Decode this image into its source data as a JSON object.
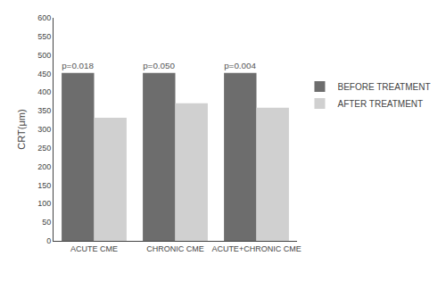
{
  "chart_data": {
    "type": "bar",
    "categories": [
      "ACUTE CME",
      "CHRONIC CME",
      "ACUTE+CHRONIC CME"
    ],
    "series": [
      {
        "name": "BEFORE TREATMENT",
        "color": "#6d6d6d",
        "values": [
          452,
          452,
          452
        ],
        "annotations": [
          "p=0.018",
          "p=0.050",
          "p=0.004"
        ]
      },
      {
        "name": "AFTER TREATMENT",
        "color": "#d0d0d0",
        "values": [
          331,
          370,
          358
        ]
      }
    ],
    "ylabel": "CRT(μm)",
    "ylim": [
      0,
      600
    ],
    "yticks": [
      0,
      50,
      100,
      150,
      200,
      250,
      300,
      350,
      400,
      450,
      500,
      550,
      600
    ],
    "grid": false,
    "legend": "right"
  }
}
